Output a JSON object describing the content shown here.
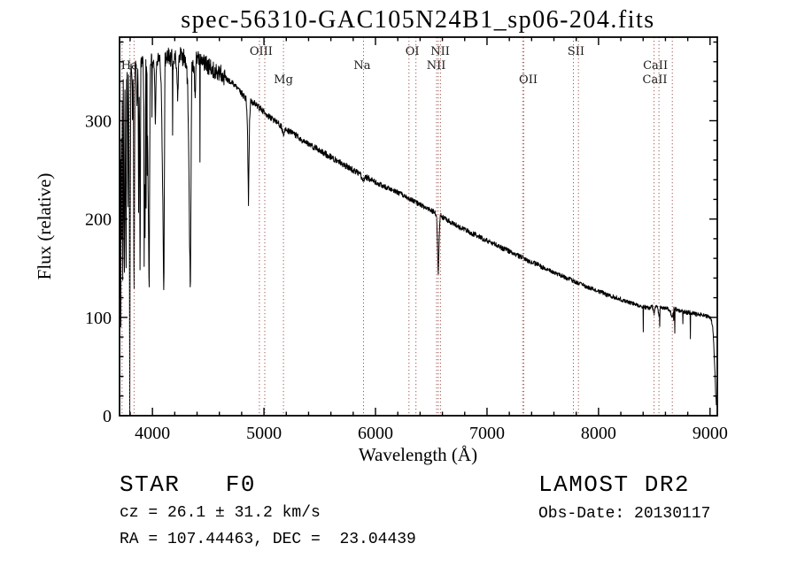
{
  "title": "spec-56310-GAC105N24B1_sp06-204.fits",
  "annotations": {
    "class_label": "STAR   F0",
    "cz": "cz = 26.1 ± 31.2 km/s",
    "radec": "RA = 107.44463, DEC =  23.04439",
    "survey": "LAMOST DR2",
    "obs_date": "Obs-Date: 20130117"
  },
  "chart_data": {
    "type": "line",
    "title": "spec-56310-GAC105N24B1_sp06-204.fits",
    "xlabel": "Wavelength (Å)",
    "ylabel": "Flux (relative)",
    "xlim": [
      3705,
      9065
    ],
    "ylim": [
      0,
      385
    ],
    "xticks": [
      4000,
      5000,
      6000,
      7000,
      8000,
      9000
    ],
    "yticks": [
      0,
      100,
      200,
      300
    ],
    "x_minor_step": 200,
    "y_minor_step": 20,
    "grid": false,
    "legend": "none",
    "line_color": "#000000",
    "marker_color": "#a05a55",
    "spectral_lines": [
      3727,
      3798,
      3835,
      4959,
      5007,
      5175,
      5893,
      6300,
      6363,
      6548,
      6563,
      6583,
      7320,
      7330,
      7775,
      7820,
      8498,
      8542,
      8662
    ],
    "line_labels": [
      {
        "text": "Ha",
        "wavelength": 3795,
        "row": 2
      },
      {
        "text": "OIII",
        "wavelength": 4975,
        "row": 1
      },
      {
        "text": "Mg",
        "wavelength": 5175,
        "row": 3
      },
      {
        "text": "Na",
        "wavelength": 5880,
        "row": 2
      },
      {
        "text": "OI",
        "wavelength": 6330,
        "row": 1
      },
      {
        "text": "NII",
        "wavelength": 6580,
        "row": 1
      },
      {
        "text": "NII",
        "wavelength": 6545,
        "row": 2
      },
      {
        "text": "OII",
        "wavelength": 7370,
        "row": 3
      },
      {
        "text": "SII",
        "wavelength": 7798,
        "row": 1
      },
      {
        "text": "CaII",
        "wavelength": 8510,
        "row": 2
      },
      {
        "text": "CaII",
        "wavelength": 8505,
        "row": 3
      }
    ],
    "spectrum_points": [
      [
        3705,
        195
      ],
      [
        3708,
        95
      ],
      [
        3712,
        320
      ],
      [
        3716,
        88
      ],
      [
        3720,
        335
      ],
      [
        3724,
        150
      ],
      [
        3728,
        340
      ],
      [
        3733,
        110
      ],
      [
        3738,
        345
      ],
      [
        3744,
        200
      ],
      [
        3748,
        120
      ],
      [
        3753,
        345
      ],
      [
        3758,
        230
      ],
      [
        3763,
        135
      ],
      [
        3768,
        350
      ],
      [
        3775,
        340
      ],
      [
        3780,
        185
      ],
      [
        3786,
        350
      ],
      [
        3792,
        250
      ],
      [
        3798,
        115
      ],
      [
        3806,
        350
      ],
      [
        3815,
        352
      ],
      [
        3822,
        300
      ],
      [
        3828,
        352
      ],
      [
        3835,
        100
      ],
      [
        3843,
        348
      ],
      [
        3852,
        355
      ],
      [
        3862,
        310
      ],
      [
        3870,
        355
      ],
      [
        3876,
        215
      ],
      [
        3882,
        352
      ],
      [
        3889,
        130
      ],
      [
        3896,
        355
      ],
      [
        3905,
        358
      ],
      [
        3915,
        360
      ],
      [
        3925,
        300
      ],
      [
        3933,
        170
      ],
      [
        3941,
        355
      ],
      [
        3950,
        358
      ],
      [
        3960,
        250
      ],
      [
        3970,
        115
      ],
      [
        3980,
        355
      ],
      [
        3992,
        360
      ],
      [
        4005,
        362
      ],
      [
        4015,
        358
      ],
      [
        4026,
        300
      ],
      [
        4038,
        364
      ],
      [
        4052,
        366
      ],
      [
        4065,
        362
      ],
      [
        4078,
        340
      ],
      [
        4090,
        250
      ],
      [
        4102,
        110
      ],
      [
        4112,
        360
      ],
      [
        4125,
        365
      ],
      [
        4140,
        367
      ],
      [
        4155,
        362
      ],
      [
        4170,
        365
      ],
      [
        4185,
        360
      ],
      [
        4200,
        365
      ],
      [
        4215,
        358
      ],
      [
        4226,
        320
      ],
      [
        4238,
        366
      ],
      [
        4252,
        368
      ],
      [
        4268,
        363
      ],
      [
        4285,
        366
      ],
      [
        4300,
        355
      ],
      [
        4315,
        340
      ],
      [
        4326,
        255
      ],
      [
        4340,
        115
      ],
      [
        4352,
        355
      ],
      [
        4365,
        362
      ],
      [
        4375,
        345
      ],
      [
        4383,
        325
      ],
      [
        4393,
        362
      ],
      [
        4405,
        366
      ],
      [
        4420,
        362
      ],
      [
        4435,
        360
      ],
      [
        4450,
        362
      ],
      [
        4470,
        358
      ],
      [
        4490,
        357
      ],
      [
        4510,
        355
      ],
      [
        4530,
        354
      ],
      [
        4550,
        352
      ],
      [
        4575,
        350
      ],
      [
        4600,
        349
      ],
      [
        4625,
        347
      ],
      [
        4650,
        344
      ],
      [
        4675,
        342
      ],
      [
        4700,
        339
      ],
      [
        4725,
        337
      ],
      [
        4750,
        334
      ],
      [
        4775,
        331
      ],
      [
        4800,
        328
      ],
      [
        4820,
        325
      ],
      [
        4840,
        322
      ],
      [
        4852,
        295
      ],
      [
        4858,
        240
      ],
      [
        4861,
        215
      ],
      [
        4866,
        260
      ],
      [
        4872,
        305
      ],
      [
        4880,
        320
      ],
      [
        4895,
        319
      ],
      [
        4910,
        318
      ],
      [
        4930,
        316
      ],
      [
        4950,
        314
      ],
      [
        4970,
        312
      ],
      [
        4990,
        310
      ],
      [
        5010,
        308
      ],
      [
        5035,
        305
      ],
      [
        5060,
        303
      ],
      [
        5085,
        301
      ],
      [
        5110,
        299
      ],
      [
        5135,
        297
      ],
      [
        5160,
        293
      ],
      [
        5175,
        285
      ],
      [
        5188,
        292
      ],
      [
        5205,
        291
      ],
      [
        5225,
        289
      ],
      [
        5250,
        288
      ],
      [
        5275,
        286
      ],
      [
        5300,
        284
      ],
      [
        5330,
        281
      ],
      [
        5360,
        279
      ],
      [
        5390,
        277
      ],
      [
        5420,
        275
      ],
      [
        5450,
        273
      ],
      [
        5480,
        271
      ],
      [
        5510,
        269
      ],
      [
        5540,
        267
      ],
      [
        5570,
        265
      ],
      [
        5600,
        263
      ],
      [
        5630,
        261
      ],
      [
        5660,
        259
      ],
      [
        5690,
        257
      ],
      [
        5720,
        255
      ],
      [
        5750,
        253
      ],
      [
        5780,
        251
      ],
      [
        5810,
        249
      ],
      [
        5840,
        247
      ],
      [
        5870,
        244
      ],
      [
        5890,
        238
      ],
      [
        5902,
        243
      ],
      [
        5920,
        242
      ],
      [
        5950,
        241
      ],
      [
        5980,
        239
      ],
      [
        6010,
        237
      ],
      [
        6040,
        235
      ],
      [
        6080,
        233
      ],
      [
        6120,
        231
      ],
      [
        6160,
        229
      ],
      [
        6200,
        227
      ],
      [
        6240,
        225
      ],
      [
        6280,
        222
      ],
      [
        6320,
        220
      ],
      [
        6360,
        217
      ],
      [
        6400,
        215
      ],
      [
        6440,
        212
      ],
      [
        6480,
        210
      ],
      [
        6510,
        208
      ],
      [
        6530,
        207
      ],
      [
        6548,
        204
      ],
      [
        6556,
        175
      ],
      [
        6563,
        140
      ],
      [
        6571,
        180
      ],
      [
        6580,
        204
      ],
      [
        6600,
        202
      ],
      [
        6630,
        200
      ],
      [
        6660,
        198
      ],
      [
        6690,
        196
      ],
      [
        6720,
        194
      ],
      [
        6750,
        192
      ],
      [
        6780,
        190
      ],
      [
        6810,
        189
      ],
      [
        6840,
        187
      ],
      [
        6870,
        185
      ],
      [
        6900,
        184
      ],
      [
        6930,
        182
      ],
      [
        6960,
        180
      ],
      [
        6990,
        179
      ],
      [
        7020,
        177
      ],
      [
        7050,
        175
      ],
      [
        7080,
        174
      ],
      [
        7110,
        172
      ],
      [
        7140,
        170
      ],
      [
        7170,
        169
      ],
      [
        7200,
        167
      ],
      [
        7230,
        165
      ],
      [
        7260,
        164
      ],
      [
        7290,
        162
      ],
      [
        7320,
        161
      ],
      [
        7350,
        159
      ],
      [
        7380,
        157
      ],
      [
        7410,
        156
      ],
      [
        7440,
        154
      ],
      [
        7470,
        153
      ],
      [
        7500,
        151
      ],
      [
        7530,
        149
      ],
      [
        7560,
        148
      ],
      [
        7590,
        146
      ],
      [
        7620,
        145
      ],
      [
        7650,
        143
      ],
      [
        7680,
        142
      ],
      [
        7710,
        140
      ],
      [
        7740,
        139
      ],
      [
        7770,
        137
      ],
      [
        7800,
        136
      ],
      [
        7830,
        134
      ],
      [
        7860,
        133
      ],
      [
        7890,
        131
      ],
      [
        7920,
        130
      ],
      [
        7950,
        129
      ],
      [
        7980,
        127
      ],
      [
        8010,
        126
      ],
      [
        8040,
        125
      ],
      [
        8070,
        123
      ],
      [
        8100,
        122
      ],
      [
        8130,
        121
      ],
      [
        8160,
        120
      ],
      [
        8190,
        119
      ],
      [
        8220,
        117
      ],
      [
        8250,
        116
      ],
      [
        8280,
        115
      ],
      [
        8310,
        114
      ],
      [
        8340,
        113
      ],
      [
        8370,
        112
      ],
      [
        8400,
        111
      ],
      [
        8430,
        110
      ],
      [
        8460,
        109
      ],
      [
        8480,
        112
      ],
      [
        8498,
        104
      ],
      [
        8512,
        112
      ],
      [
        8528,
        110
      ],
      [
        8542,
        102
      ],
      [
        8556,
        111
      ],
      [
        8580,
        110
      ],
      [
        8610,
        109
      ],
      [
        8640,
        108
      ],
      [
        8662,
        99
      ],
      [
        8676,
        109
      ],
      [
        8700,
        108
      ],
      [
        8730,
        107
      ],
      [
        8760,
        106
      ],
      [
        8790,
        105
      ],
      [
        8820,
        105
      ],
      [
        8850,
        104
      ],
      [
        8880,
        103
      ],
      [
        8910,
        103
      ],
      [
        8940,
        102
      ],
      [
        8970,
        101
      ],
      [
        9000,
        100
      ],
      [
        9015,
        96
      ],
      [
        9028,
        85
      ],
      [
        9040,
        55
      ],
      [
        9050,
        25
      ],
      [
        9058,
        4
      ]
    ]
  }
}
